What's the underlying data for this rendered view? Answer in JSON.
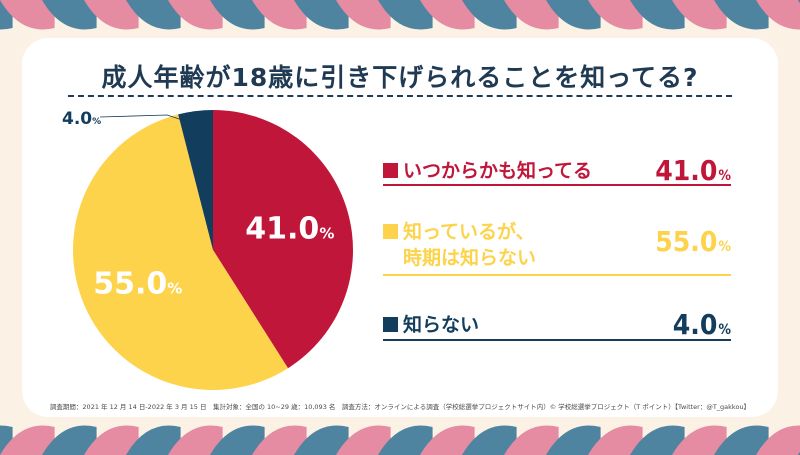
{
  "colors": {
    "red": "#c0163a",
    "yellow": "#fcd34b",
    "navy": "#123d5c",
    "title": "#1f3a52",
    "band_pink": "#e58ba2",
    "band_blue": "#4f84a0"
  },
  "title": "成人年齢が18歳に引き下げられることを知ってる?",
  "footer": "調査期間：2021 年 12 月 14 日-2022 年 3 月 15 日　集計対象：全国の 10~29 歳：10,093 名　調査方法：オンラインによる調査（学校総選挙プロジェクトサイト内）© 学校総選挙プロジェクト（T ポイント）【Twitter：@T_gakkou】",
  "chart_data": {
    "type": "pie",
    "title": "成人年齢が18歳に引き下げられることを知ってる?",
    "unit": "%",
    "slices": [
      {
        "label": "いつからかも知ってる",
        "value": 41.0,
        "display": "41.0",
        "color": "#c0163a"
      },
      {
        "label": "知っているが、時期は知らない",
        "label_lines": [
          "知っているが、",
          "時期は知らない"
        ],
        "value": 55.0,
        "display": "55.0",
        "color": "#fcd34b"
      },
      {
        "label": "知らない",
        "value": 4.0,
        "display": "4.0",
        "color": "#123d5c"
      }
    ],
    "start": "12 o'clock, clockwise",
    "legend_placement": "right"
  }
}
